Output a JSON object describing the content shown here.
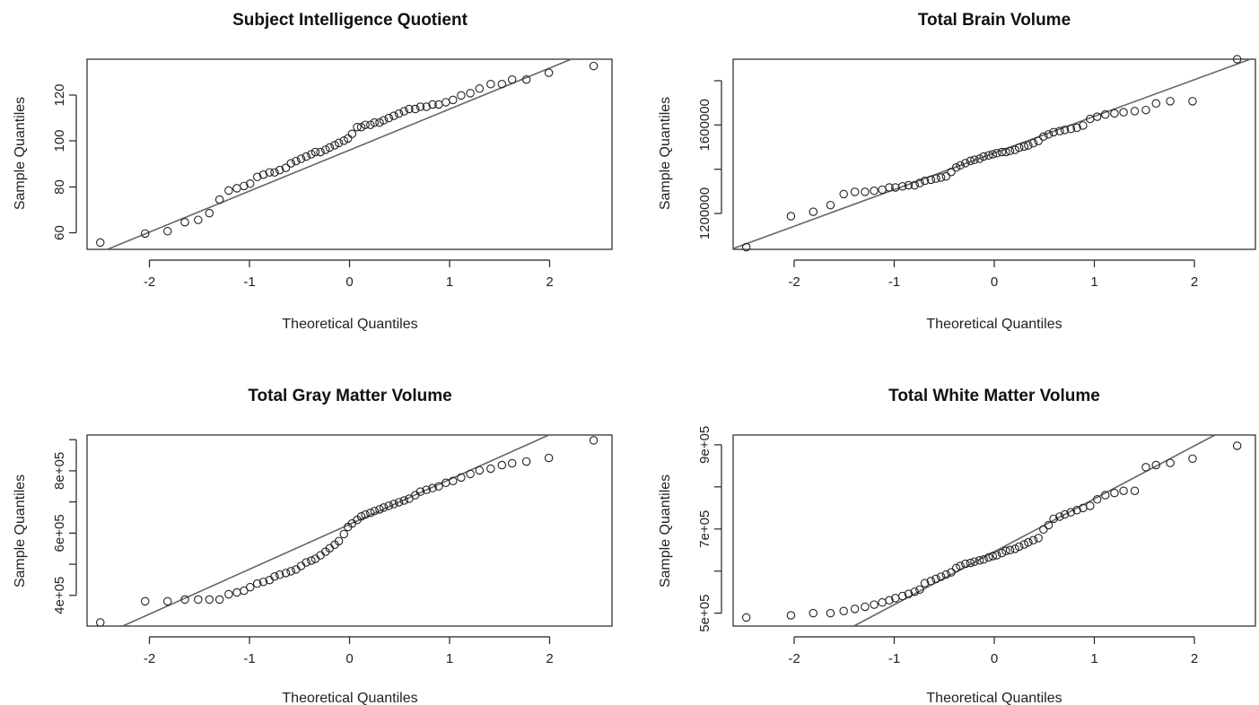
{
  "chart_data": [
    {
      "type": "scatter",
      "title": "Subject Intelligence Quotient",
      "xlabel": "Theoretical Quantiles",
      "ylabel": "Sample Quantiles",
      "xlim": [
        -2.55,
        2.6
      ],
      "ylim": [
        52,
        136
      ],
      "x_ticks": [
        -2,
        -1,
        0,
        1,
        2
      ],
      "x_tick_labels": [
        "-2",
        "-1",
        "0",
        "1",
        "2"
      ],
      "y_ticks": [
        60,
        80,
        100,
        120
      ],
      "y_tick_labels": [
        "60",
        "80",
        "100",
        "120"
      ],
      "reference_line": [
        [
          -2.35,
          52
        ],
        [
          2.2,
          136
        ]
      ],
      "x": [
        -2.42,
        -1.98,
        -1.76,
        -1.59,
        -1.46,
        -1.35,
        -1.25,
        -1.16,
        -1.08,
        -1.01,
        -0.95,
        -0.88,
        -0.82,
        -0.76,
        -0.71,
        -0.66,
        -0.6,
        -0.55,
        -0.5,
        -0.45,
        -0.4,
        -0.35,
        -0.31,
        -0.26,
        -0.21,
        -0.17,
        -0.12,
        -0.08,
        -0.03,
        0.01,
        0.05,
        0.1,
        0.14,
        0.18,
        0.23,
        0.27,
        0.32,
        0.36,
        0.41,
        0.46,
        0.51,
        0.56,
        0.61,
        0.67,
        0.72,
        0.78,
        0.84,
        0.9,
        0.97,
        1.04,
        1.12,
        1.21,
        1.3,
        1.41,
        1.52,
        1.62,
        1.76,
        1.98,
        2.42
      ],
      "y": [
        55,
        59,
        60,
        64,
        65,
        68,
        74,
        78,
        79,
        80,
        81,
        84,
        85,
        86,
        86,
        87,
        88,
        90,
        91,
        92,
        93,
        94,
        95,
        95,
        96,
        97,
        98,
        99,
        100,
        101,
        103,
        106,
        106,
        107,
        107,
        108,
        108,
        109,
        110,
        111,
        112,
        113,
        114,
        114,
        115,
        115,
        116,
        116,
        117,
        118,
        120,
        121,
        123,
        125,
        125,
        127,
        127,
        130,
        133
      ]
    },
    {
      "type": "scatter",
      "title": "Total Brain Volume",
      "xlabel": "Theoretical Quantiles",
      "ylabel": "Sample Quantiles",
      "xlim": [
        -2.55,
        2.6
      ],
      "ylim": [
        1030000,
        1890000
      ],
      "x_ticks": [
        -2,
        -1,
        0,
        1,
        2
      ],
      "x_tick_labels": [
        "-2",
        "-1",
        "0",
        "1",
        "2"
      ],
      "y_ticks": [
        1200000,
        1400000,
        1600000,
        1800000
      ],
      "y_tick_labels": [
        "1200000",
        "",
        "1600000",
        ""
      ],
      "reference_line": [
        [
          -2.6,
          1025000
        ],
        [
          2.55,
          1890000
        ]
      ],
      "x": [
        -2.42,
        -1.98,
        -1.76,
        -1.59,
        -1.46,
        -1.35,
        -1.25,
        -1.16,
        -1.08,
        -1.01,
        -0.95,
        -0.88,
        -0.82,
        -0.76,
        -0.71,
        -0.66,
        -0.6,
        -0.55,
        -0.5,
        -0.45,
        -0.4,
        -0.35,
        -0.31,
        -0.26,
        -0.21,
        -0.17,
        -0.12,
        -0.08,
        -0.03,
        0.01,
        0.05,
        0.1,
        0.14,
        0.18,
        0.23,
        0.27,
        0.32,
        0.36,
        0.41,
        0.46,
        0.51,
        0.56,
        0.61,
        0.67,
        0.72,
        0.78,
        0.84,
        0.9,
        0.97,
        1.04,
        1.12,
        1.21,
        1.3,
        1.41,
        1.52,
        1.62,
        1.76,
        1.98,
        2.42
      ],
      "y": [
        1040000,
        1180000,
        1200000,
        1230000,
        1280000,
        1290000,
        1290000,
        1295000,
        1300000,
        1310000,
        1310000,
        1315000,
        1320000,
        1320000,
        1330000,
        1340000,
        1345000,
        1350000,
        1355000,
        1360000,
        1380000,
        1400000,
        1410000,
        1420000,
        1430000,
        1435000,
        1440000,
        1450000,
        1455000,
        1460000,
        1465000,
        1470000,
        1470000,
        1475000,
        1480000,
        1490000,
        1495000,
        1500000,
        1510000,
        1520000,
        1540000,
        1550000,
        1560000,
        1565000,
        1570000,
        1575000,
        1580000,
        1590000,
        1620000,
        1630000,
        1640000,
        1645000,
        1650000,
        1655000,
        1660000,
        1690000,
        1700000,
        1700000,
        1890000
      ]
    },
    {
      "type": "scatter",
      "title": "Total Gray Matter Volume",
      "xlabel": "Theoretical Quantiles",
      "ylabel": "Sample Quantiles",
      "xlim": [
        -2.55,
        2.6
      ],
      "ylim": [
        360000,
        900000
      ],
      "x_ticks": [
        -2,
        -1,
        0,
        1,
        2
      ],
      "x_tick_labels": [
        "-2",
        "-1",
        "0",
        "1",
        "2"
      ],
      "y_ticks": [
        400000,
        500000,
        600000,
        700000,
        800000,
        900000
      ],
      "y_tick_labels": [
        "4e+05",
        "",
        "6e+05",
        "",
        "8e+05",
        ""
      ],
      "reference_line": [
        [
          -2.2,
          360000
        ],
        [
          1.98,
          900000
        ]
      ],
      "x": [
        -2.42,
        -1.98,
        -1.76,
        -1.59,
        -1.46,
        -1.35,
        -1.25,
        -1.16,
        -1.08,
        -1.01,
        -0.95,
        -0.88,
        -0.82,
        -0.76,
        -0.71,
        -0.66,
        -0.6,
        -0.55,
        -0.5,
        -0.45,
        -0.4,
        -0.35,
        -0.31,
        -0.26,
        -0.21,
        -0.17,
        -0.12,
        -0.08,
        -0.03,
        0.01,
        0.05,
        0.1,
        0.14,
        0.18,
        0.23,
        0.27,
        0.32,
        0.36,
        0.41,
        0.46,
        0.51,
        0.56,
        0.61,
        0.67,
        0.72,
        0.78,
        0.84,
        0.9,
        0.97,
        1.04,
        1.12,
        1.21,
        1.3,
        1.41,
        1.52,
        1.62,
        1.76,
        1.98,
        2.42
      ],
      "y": [
        370000,
        430000,
        430000,
        435000,
        435000,
        435000,
        435000,
        450000,
        455000,
        460000,
        470000,
        480000,
        485000,
        490000,
        500000,
        505000,
        510000,
        515000,
        520000,
        530000,
        540000,
        545000,
        550000,
        560000,
        570000,
        580000,
        590000,
        600000,
        620000,
        640000,
        650000,
        660000,
        670000,
        675000,
        680000,
        685000,
        690000,
        695000,
        700000,
        705000,
        710000,
        715000,
        720000,
        730000,
        740000,
        745000,
        750000,
        755000,
        765000,
        770000,
        780000,
        790000,
        800000,
        805000,
        815000,
        820000,
        825000,
        835000,
        885000
      ]
    },
    {
      "type": "scatter",
      "title": "Total White Matter Volume",
      "xlabel": "Theoretical Quantiles",
      "ylabel": "Sample Quantiles",
      "xlim": [
        -2.55,
        2.6
      ],
      "ylim": [
        465000,
        910000
      ],
      "x_ticks": [
        -2,
        -1,
        0,
        1,
        2
      ],
      "x_tick_labels": [
        "-2",
        "-1",
        "0",
        "1",
        "2"
      ],
      "y_ticks": [
        500000,
        600000,
        700000,
        800000,
        900000
      ],
      "y_tick_labels": [
        "5e+05",
        "",
        "7e+05",
        "",
        "9e+05"
      ],
      "reference_line": [
        [
          -1.36,
          465000
        ],
        [
          2.2,
          910000
        ]
      ],
      "x": [
        -2.42,
        -1.98,
        -1.76,
        -1.59,
        -1.46,
        -1.35,
        -1.25,
        -1.16,
        -1.08,
        -1.01,
        -0.95,
        -0.88,
        -0.82,
        -0.76,
        -0.71,
        -0.66,
        -0.6,
        -0.55,
        -0.5,
        -0.45,
        -0.4,
        -0.35,
        -0.31,
        -0.26,
        -0.21,
        -0.17,
        -0.12,
        -0.08,
        -0.03,
        0.01,
        0.05,
        0.1,
        0.14,
        0.18,
        0.23,
        0.27,
        0.32,
        0.36,
        0.41,
        0.46,
        0.51,
        0.56,
        0.61,
        0.67,
        0.72,
        0.78,
        0.84,
        0.9,
        0.97,
        1.04,
        1.12,
        1.21,
        1.3,
        1.41,
        1.52,
        1.62,
        1.76,
        1.98,
        2.42
      ],
      "y": [
        485000,
        490000,
        495000,
        495000,
        500000,
        505000,
        510000,
        515000,
        520000,
        525000,
        530000,
        535000,
        540000,
        545000,
        550000,
        565000,
        570000,
        575000,
        580000,
        585000,
        590000,
        600000,
        605000,
        610000,
        612000,
        615000,
        618000,
        620000,
        625000,
        628000,
        630000,
        635000,
        640000,
        642000,
        645000,
        650000,
        655000,
        660000,
        665000,
        670000,
        690000,
        700000,
        715000,
        720000,
        725000,
        730000,
        735000,
        740000,
        745000,
        760000,
        770000,
        775000,
        780000,
        780000,
        835000,
        840000,
        845000,
        855000,
        885000
      ]
    }
  ]
}
